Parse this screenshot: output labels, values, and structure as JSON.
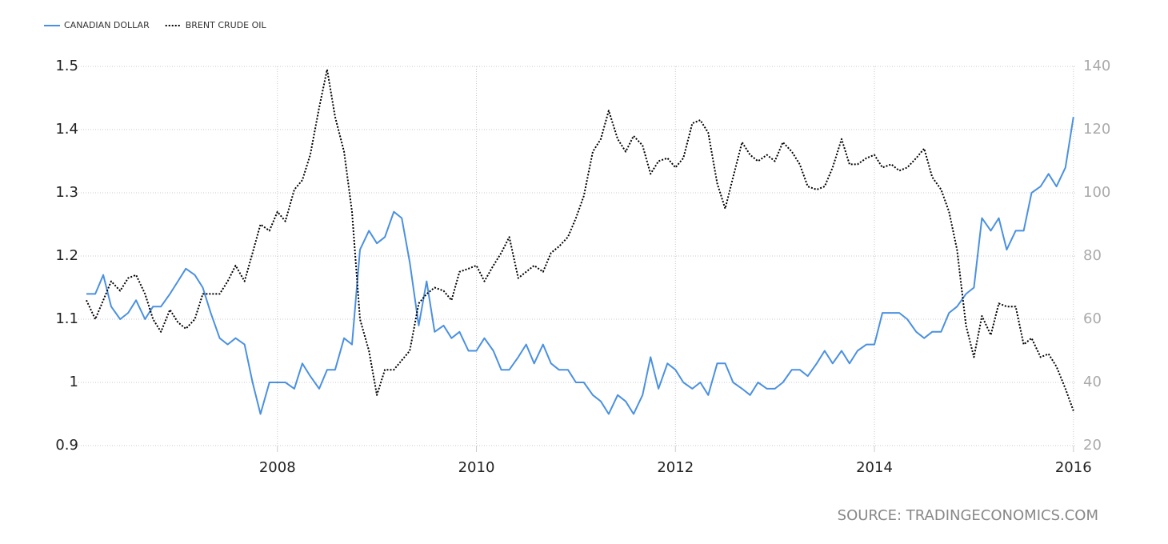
{
  "chart_data": {
    "type": "line",
    "source": "SOURCE: TRADINGECONOMICS.COM",
    "x": [
      2006.08,
      2006.17,
      2006.25,
      2006.33,
      2006.42,
      2006.5,
      2006.58,
      2006.67,
      2006.75,
      2006.83,
      2006.92,
      2007,
      2007.08,
      2007.17,
      2007.25,
      2007.33,
      2007.42,
      2007.5,
      2007.58,
      2007.67,
      2007.75,
      2007.83,
      2007.92,
      2008,
      2008.08,
      2008.17,
      2008.25,
      2008.33,
      2008.42,
      2008.5,
      2008.58,
      2008.67,
      2008.75,
      2008.83,
      2008.92,
      2009,
      2009.08,
      2009.17,
      2009.25,
      2009.33,
      2009.42,
      2009.5,
      2009.58,
      2009.67,
      2009.75,
      2009.83,
      2009.92,
      2010,
      2010.08,
      2010.17,
      2010.25,
      2010.33,
      2010.42,
      2010.5,
      2010.58,
      2010.67,
      2010.75,
      2010.83,
      2010.92,
      2011,
      2011.08,
      2011.17,
      2011.25,
      2011.33,
      2011.42,
      2011.5,
      2011.58,
      2011.67,
      2011.75,
      2011.83,
      2011.92,
      2012,
      2012.08,
      2012.17,
      2012.25,
      2012.33,
      2012.42,
      2012.5,
      2012.58,
      2012.67,
      2012.75,
      2012.83,
      2012.92,
      2013,
      2013.08,
      2013.17,
      2013.25,
      2013.33,
      2013.42,
      2013.5,
      2013.58,
      2013.67,
      2013.75,
      2013.83,
      2013.92,
      2014,
      2014.08,
      2014.17,
      2014.25,
      2014.33,
      2014.42,
      2014.5,
      2014.58,
      2014.67,
      2014.75,
      2014.83,
      2014.92,
      2015,
      2015.08,
      2015.17,
      2015.25,
      2015.33,
      2015.42,
      2015.5,
      2015.58,
      2015.67,
      2015.75,
      2015.83,
      2015.92,
      2016
    ],
    "series": [
      {
        "name": "CANADIAN DOLLAR",
        "color": "#4a90e2",
        "values": [
          1.14,
          1.14,
          1.17,
          1.12,
          1.1,
          1.11,
          1.13,
          1.1,
          1.12,
          1.12,
          1.14,
          1.16,
          1.18,
          1.17,
          1.15,
          1.11,
          1.07,
          1.06,
          1.07,
          1.06,
          1.0,
          0.95,
          1.0,
          1.0,
          1.0,
          0.99,
          1.03,
          1.01,
          0.99,
          1.02,
          1.02,
          1.07,
          1.06,
          1.21,
          1.24,
          1.22,
          1.23,
          1.27,
          1.26,
          1.19,
          1.09,
          1.16,
          1.08,
          1.09,
          1.07,
          1.08,
          1.05,
          1.05,
          1.07,
          1.05,
          1.02,
          1.02,
          1.04,
          1.06,
          1.03,
          1.06,
          1.03,
          1.02,
          1.02,
          1.0,
          1.0,
          0.98,
          0.97,
          0.95,
          0.98,
          0.97,
          0.95,
          0.98,
          1.04,
          0.99,
          1.03,
          1.02,
          1.0,
          0.99,
          1.0,
          0.98,
          1.03,
          1.03,
          1.0,
          0.99,
          0.98,
          1.0,
          0.99,
          0.99,
          1.0,
          1.02,
          1.02,
          1.01,
          1.03,
          1.05,
          1.03,
          1.05,
          1.03,
          1.05,
          1.06,
          1.06,
          1.11,
          1.11,
          1.11,
          1.1,
          1.08,
          1.07,
          1.08,
          1.08,
          1.11,
          1.12,
          1.14,
          1.15,
          1.26,
          1.24,
          1.26,
          1.21,
          1.24,
          1.24,
          1.3,
          1.31,
          1.33,
          1.31,
          1.34,
          1.42
        ]
      },
      {
        "name": "BRENT CRUDE OIL",
        "color": "#000000",
        "axis": "y2",
        "dash": true,
        "values": [
          66,
          60,
          66,
          72,
          69,
          73,
          74,
          68,
          60,
          56,
          63,
          59,
          57,
          60,
          68,
          68,
          68,
          72,
          77,
          72,
          81,
          90,
          88,
          94,
          91,
          101,
          104,
          112,
          127,
          139,
          124,
          113,
          94,
          60,
          50,
          36,
          44,
          44,
          47,
          50,
          65,
          68,
          70,
          69,
          66,
          75,
          76,
          77,
          72,
          77,
          81,
          86,
          73,
          75,
          77,
          75,
          81,
          83,
          86,
          92,
          99,
          113,
          117,
          126,
          117,
          113,
          118,
          115,
          106,
          110,
          111,
          108,
          111,
          122,
          123,
          119,
          103,
          95,
          105,
          116,
          112,
          110,
          112,
          110,
          116,
          113,
          109,
          102,
          101,
          102,
          108,
          117,
          109,
          109,
          111,
          112,
          108,
          109,
          107,
          108,
          111,
          114,
          105,
          101,
          94,
          82,
          58,
          48,
          61,
          55,
          65,
          64,
          64,
          52,
          54,
          48,
          49,
          45,
          38,
          31
        ]
      }
    ],
    "xlim": [
      2006,
      2016.05
    ],
    "xticks": [
      2008,
      2010,
      2012,
      2014,
      2016
    ],
    "ylim": [
      0.9,
      1.5
    ],
    "yticks": [
      0.9,
      1,
      1.1,
      1.2,
      1.3,
      1.4,
      1.5
    ],
    "y2lim": [
      20,
      140
    ],
    "y2ticks": [
      20,
      40,
      60,
      80,
      100,
      120,
      140
    ],
    "grid": true,
    "legend": "top-left"
  }
}
